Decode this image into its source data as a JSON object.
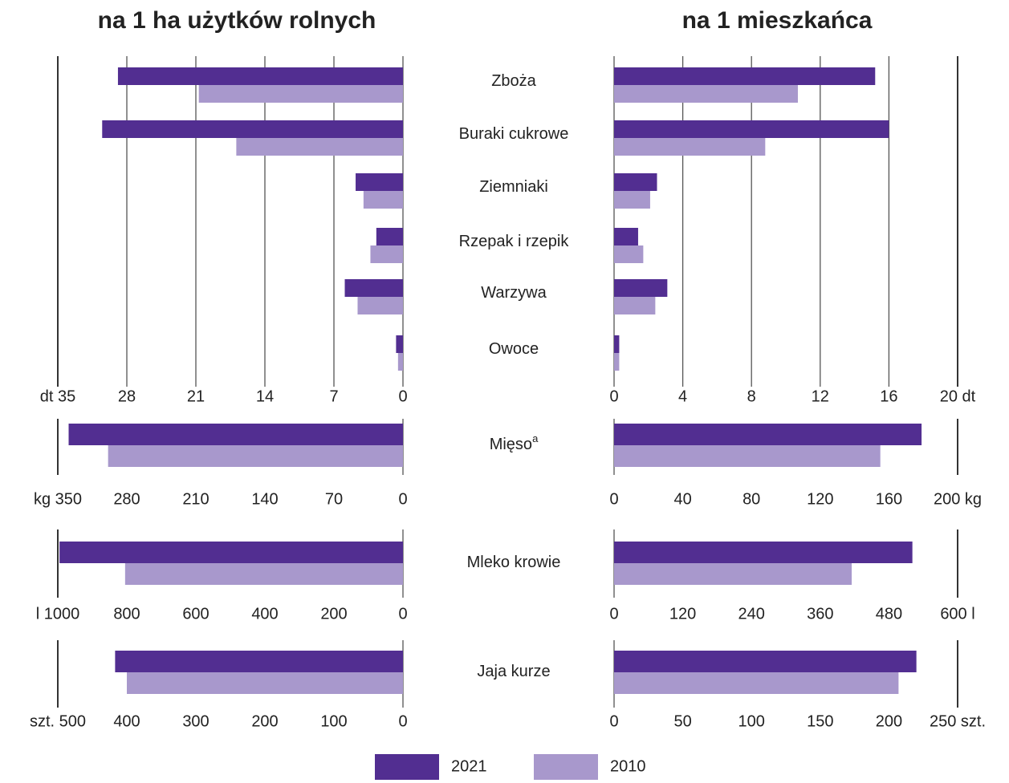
{
  "chart_data": {
    "type": "butterfly-bar",
    "left_title": "na 1 ha użytków rolnych",
    "right_title": "na 1 mieszkańca",
    "title_color": "#e5174b",
    "series": [
      {
        "name": "2021",
        "color": "#522e91"
      },
      {
        "name": "2010",
        "color": "#a898cc"
      }
    ],
    "panels": [
      {
        "categories": [
          "Zboża",
          "Buraki cukrowe",
          "Ziemniaki",
          "Rzepak i rzepik",
          "Warzywa",
          "Owoce"
        ],
        "grid": true,
        "left": {
          "xlim": [
            0,
            35
          ],
          "xticks": [
            0,
            7,
            14,
            21,
            28,
            {
              "value": 35,
              "label": "dt 35"
            }
          ],
          "values": [
            [
              28.9,
              30.5,
              4.8,
              2.7,
              5.9,
              0.7
            ],
            [
              20.7,
              16.9,
              4.0,
              3.3,
              4.6,
              0.5
            ]
          ]
        },
        "right": {
          "xlim": [
            0,
            20
          ],
          "xticks": [
            0,
            4,
            8,
            12,
            16,
            {
              "value": 20,
              "label": "20 dt"
            }
          ],
          "values": [
            [
              15.2,
              16.0,
              2.5,
              1.4,
              3.1,
              0.3
            ],
            [
              10.7,
              8.8,
              2.1,
              1.7,
              2.4,
              0.3
            ]
          ]
        }
      },
      {
        "categories": [
          "Mięso"
        ],
        "footnote": "a",
        "grid": false,
        "left": {
          "xlim": [
            0,
            350
          ],
          "xticks": [
            0,
            70,
            140,
            210,
            280,
            {
              "value": 350,
              "label": "kg 350"
            }
          ],
          "values": [
            [
              339
            ],
            [
              299
            ]
          ]
        },
        "right": {
          "xlim": [
            0,
            200
          ],
          "xticks": [
            0,
            40,
            80,
            120,
            160,
            {
              "value": 200,
              "label": "200 kg"
            }
          ],
          "values": [
            [
              179
            ],
            [
              155
            ]
          ]
        }
      },
      {
        "categories": [
          "Mleko krowie"
        ],
        "grid": false,
        "left": {
          "xlim": [
            0,
            1000
          ],
          "xticks": [
            0,
            200,
            400,
            600,
            800,
            {
              "value": 1000,
              "label": "l 1000"
            }
          ],
          "values": [
            [
              995
            ],
            [
              805
            ]
          ]
        },
        "right": {
          "xlim": [
            0,
            600
          ],
          "xticks": [
            0,
            120,
            240,
            360,
            480,
            {
              "value": 600,
              "label": "600 l"
            }
          ],
          "values": [
            [
              521
            ],
            [
              415
            ]
          ]
        }
      },
      {
        "categories": [
          "Jaja kurze"
        ],
        "grid": false,
        "left": {
          "xlim": [
            0,
            500
          ],
          "xticks": [
            0,
            100,
            200,
            300,
            400,
            {
              "value": 500,
              "label": "szt. 500"
            }
          ],
          "values": [
            [
              417
            ],
            [
              400
            ]
          ]
        },
        "right": {
          "xlim": [
            0,
            250
          ],
          "xticks": [
            0,
            50,
            100,
            150,
            200,
            {
              "value": 250,
              "label": "250 szt."
            }
          ],
          "values": [
            [
              220
            ],
            [
              207
            ]
          ]
        }
      }
    ]
  }
}
